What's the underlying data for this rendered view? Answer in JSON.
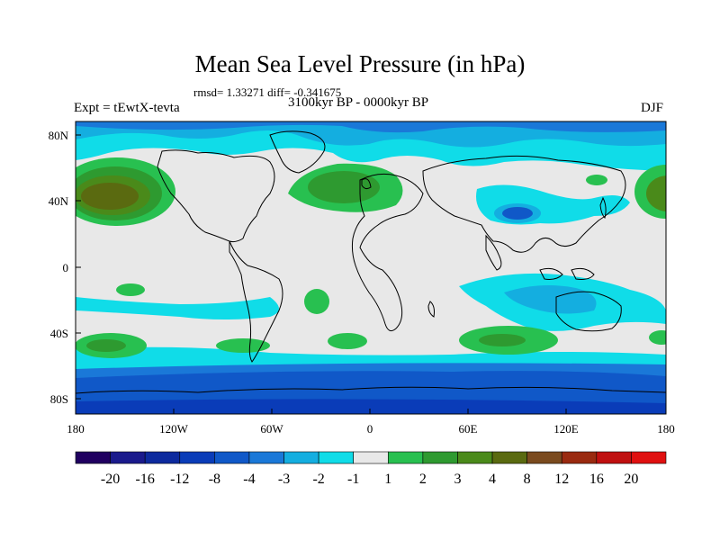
{
  "map": {
    "title": "Mean Sea Level Pressure (in hPa)",
    "stats": "rmsd= 1.33271 diff= -0.341675",
    "experiment": "Expt = tEwtX-tevta",
    "period": "3100kyr BP - 0000kyr BP",
    "season": "DJF",
    "lat_ticks": [
      "80N",
      "40N",
      "0",
      "40S",
      "80S"
    ],
    "lon_ticks": [
      "180",
      "120W",
      "60W",
      "0",
      "60E",
      "120E",
      "180"
    ],
    "colorbar": {
      "colors": [
        "#200060",
        "#1a1a8c",
        "#0d2a9e",
        "#0a3cb8",
        "#1058c8",
        "#1a78d8",
        "#14aee0",
        "#10dce8",
        "#e8e8e8",
        "#28c050",
        "#2e9a30",
        "#4a8a1a",
        "#5a6a10",
        "#7a4a1e",
        "#9a2a10",
        "#c01010",
        "#e01010"
      ],
      "labels": [
        "-20",
        "-16",
        "-12",
        "-8",
        "-4",
        "-3",
        "-2",
        "-1",
        "1",
        "2",
        "3",
        "4",
        "8",
        "12",
        "16",
        "20"
      ]
    }
  }
}
